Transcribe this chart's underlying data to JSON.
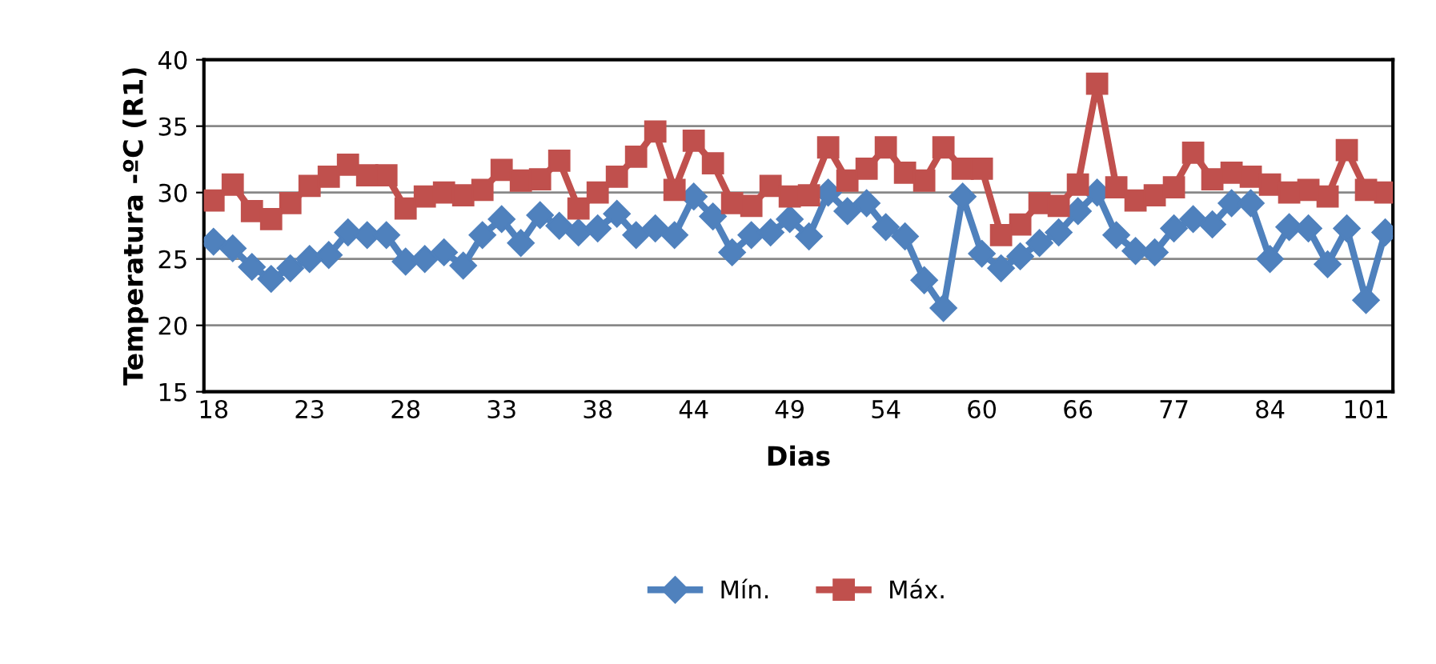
{
  "chart_data": {
    "type": "line",
    "xlabel": "Dias",
    "ylabel": "Temperatura -ºC (R1)",
    "categories": [
      "18",
      null,
      null,
      null,
      null,
      "23",
      null,
      null,
      null,
      null,
      "28",
      null,
      null,
      null,
      null,
      "33",
      null,
      null,
      null,
      null,
      "38",
      null,
      null,
      null,
      null,
      "44",
      null,
      null,
      null,
      null,
      "49",
      null,
      null,
      null,
      null,
      "54",
      null,
      null,
      null,
      null,
      "60",
      null,
      null,
      null,
      null,
      "66",
      null,
      null,
      null,
      null,
      "77",
      null,
      null,
      null,
      null,
      "84",
      null,
      null,
      null,
      null,
      "101",
      null
    ],
    "series": [
      {
        "name": "Mín.",
        "color": "#4f81bd",
        "marker": "diamond",
        "values": [
          26.3,
          25.8,
          24.4,
          23.5,
          24.3,
          25.0,
          25.3,
          27.0,
          26.8,
          26.8,
          24.8,
          25.0,
          25.5,
          24.5,
          26.8,
          28.0,
          26.2,
          28.3,
          27.5,
          27.0,
          27.3,
          28.4,
          26.8,
          27.3,
          26.8,
          29.7,
          28.2,
          25.5,
          26.8,
          27.0,
          28.0,
          26.7,
          30.0,
          28.6,
          29.2,
          27.4,
          26.7,
          23.4,
          21.3,
          29.7,
          25.4,
          24.3,
          25.2,
          26.2,
          27.0,
          28.6,
          30.0,
          26.8,
          25.6,
          25.5,
          27.3,
          28.0,
          27.6,
          29.2,
          29.2,
          25.0,
          27.4,
          27.3,
          24.6,
          27.3,
          21.9,
          27.0
        ]
      },
      {
        "name": "Máx.",
        "color": "#c0504d",
        "marker": "square",
        "values": [
          29.4,
          30.6,
          28.6,
          28.0,
          29.2,
          30.5,
          31.2,
          32.1,
          31.3,
          31.3,
          28.8,
          29.7,
          30.0,
          29.8,
          30.2,
          31.7,
          30.9,
          31.0,
          32.4,
          28.8,
          30.0,
          31.2,
          32.7,
          34.6,
          30.2,
          33.9,
          32.2,
          29.2,
          29.0,
          30.5,
          29.7,
          29.8,
          33.4,
          30.9,
          31.8,
          33.4,
          31.5,
          30.9,
          33.4,
          31.8,
          31.8,
          26.8,
          27.6,
          29.2,
          29.0,
          30.6,
          38.2,
          30.4,
          29.4,
          29.8,
          30.4,
          33.0,
          31.0,
          31.5,
          31.2,
          30.6,
          30.0,
          30.2,
          29.7,
          33.2,
          30.2,
          30.0
        ]
      }
    ],
    "ylim": [
      15,
      40
    ],
    "yticks": [
      15,
      20,
      25,
      30,
      35,
      40
    ],
    "grid": "y",
    "legend": "bottom",
    "line_style": "solid"
  }
}
